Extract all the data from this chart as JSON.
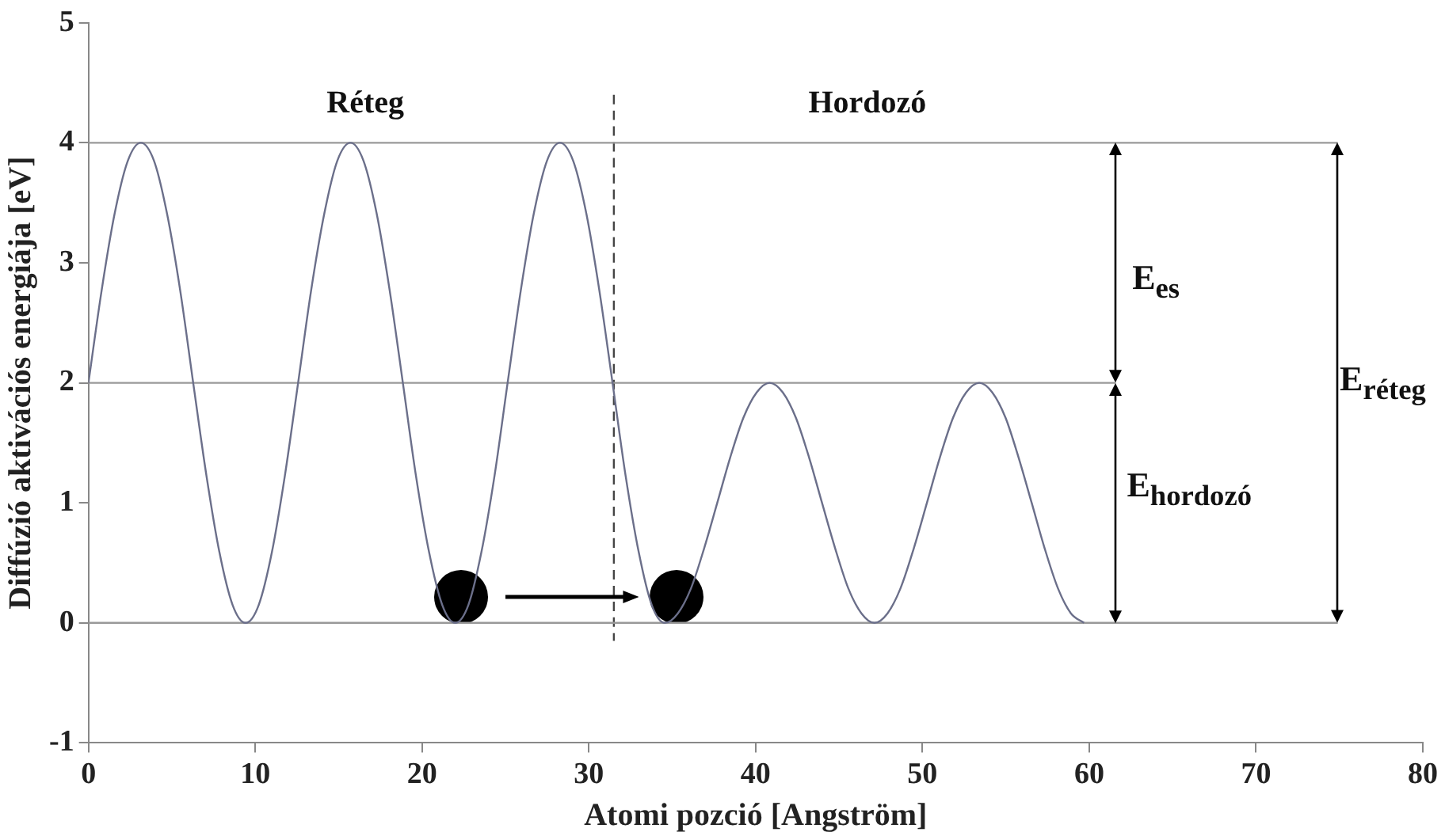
{
  "chart_data": {
    "type": "line",
    "xlabel": "Atomi pozció [Angström]",
    "ylabel": "Diffúzió aktivációs energiája [eV]",
    "xlim": [
      0,
      80
    ],
    "xticks": [
      0,
      10,
      20,
      30,
      40,
      50,
      60,
      70,
      80
    ],
    "ylim": [
      -1,
      5
    ],
    "yticks": [
      -1,
      0,
      1,
      2,
      3,
      4,
      5
    ],
    "grid": false,
    "legend": false,
    "marker": "none",
    "annotations": [
      "Réteg",
      "Hordozó",
      "E$_{es}$",
      "E$_{hordozó}$",
      "E$_{réteg}$"
    ],
    "series": [
      {
        "color": "#6b6f8a",
        "x": [
          0,
          0.79,
          1.57,
          2.36,
          3.14,
          3.93,
          4.71,
          5.5,
          6.28,
          7.07,
          7.85,
          8.64,
          9.42,
          10.21,
          11.0,
          11.78,
          12.57,
          13.35,
          14.14,
          14.92,
          15.71,
          16.49,
          17.28,
          18.06,
          18.85,
          19.63,
          20.42,
          21.21,
          21.99,
          22.78,
          23.56,
          24.35,
          25.13,
          25.92,
          26.7,
          27.49,
          28.27,
          29.06,
          29.85,
          30.63,
          31.42,
          32.2,
          32.99,
          33.77,
          34.56,
          35.34,
          36.13,
          36.91,
          37.7,
          38.48,
          39.27,
          40.06,
          40.84,
          41.63,
          42.41,
          43.2,
          43.98,
          44.77,
          45.55,
          46.34,
          47.12,
          47.91,
          48.69,
          49.48,
          50.27,
          51.05,
          51.84,
          52.62,
          53.41,
          54.19,
          54.98,
          55.76,
          56.55,
          57.33,
          58.12,
          58.9,
          59.69
        ],
        "values": [
          2,
          2.77,
          3.41,
          3.85,
          4,
          3.85,
          3.41,
          2.77,
          2,
          1.23,
          0.59,
          0.15,
          0,
          0.15,
          0.59,
          1.23,
          2,
          2.77,
          3.41,
          3.85,
          4,
          3.85,
          3.41,
          2.77,
          2,
          1.23,
          0.59,
          0.15,
          0,
          0.15,
          0.59,
          1.23,
          2,
          2.77,
          3.41,
          3.85,
          4,
          3.85,
          3.41,
          2.77,
          2,
          1.23,
          0.59,
          0.15,
          0,
          0.08,
          0.29,
          0.62,
          1,
          1.38,
          1.71,
          1.92,
          2,
          1.92,
          1.71,
          1.38,
          1,
          0.62,
          0.29,
          0.08,
          0,
          0.08,
          0.29,
          0.62,
          1,
          1.38,
          1.71,
          1.92,
          2,
          1.92,
          1.71,
          1.38,
          1,
          0.62,
          0.29,
          0.08,
          0
        ]
      },
      {
        "color": "#999999",
        "x": [
          0,
          74.9
        ],
        "values": [
          4,
          4
        ]
      },
      {
        "color": "#999999",
        "x": [
          0,
          61.6
        ],
        "values": [
          2,
          2
        ]
      },
      {
        "color": "#999999",
        "x": [
          0,
          74.9
        ],
        "values": [
          0,
          0
        ]
      },
      {
        "color": "#444444",
        "x": [
          31.5,
          31.5
        ],
        "values": [
          4.4,
          -0.15
        ],
        "line_style": "dashed"
      }
    ]
  }
}
